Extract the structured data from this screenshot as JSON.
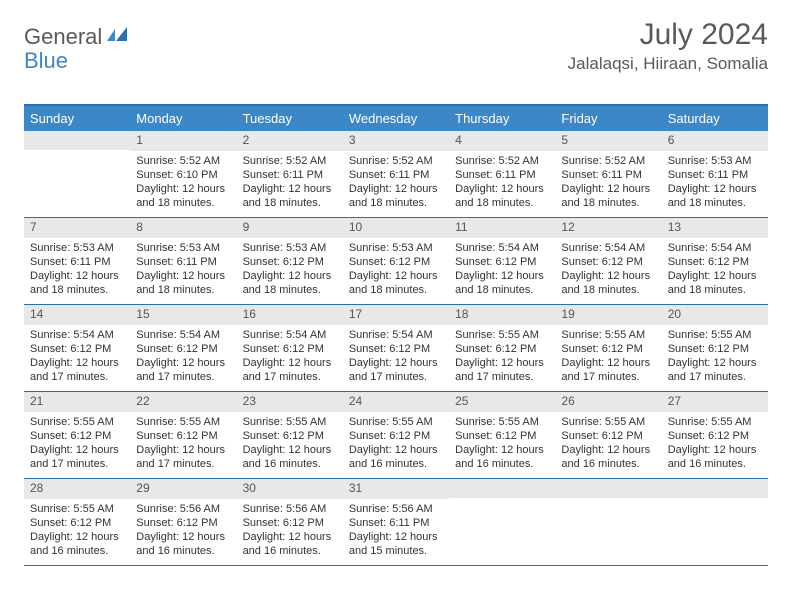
{
  "logo": {
    "part1": "General",
    "part2": "Blue"
  },
  "title": "July 2024",
  "location": "Jalalaqsi, Hiiraan, Somalia",
  "daynames": [
    "Sunday",
    "Monday",
    "Tuesday",
    "Wednesday",
    "Thursday",
    "Friday",
    "Saturday"
  ],
  "colors": {
    "header_bar": "#3b87c8",
    "border": "#2f6fa8",
    "daynum_bg": "#e8e8e8",
    "text": "#333333",
    "muted": "#5a5a5a"
  },
  "weeks": [
    [
      {
        "n": "",
        "sr": "",
        "ss": "",
        "dl": ""
      },
      {
        "n": "1",
        "sr": "Sunrise: 5:52 AM",
        "ss": "Sunset: 6:10 PM",
        "dl": "Daylight: 12 hours and 18 minutes."
      },
      {
        "n": "2",
        "sr": "Sunrise: 5:52 AM",
        "ss": "Sunset: 6:11 PM",
        "dl": "Daylight: 12 hours and 18 minutes."
      },
      {
        "n": "3",
        "sr": "Sunrise: 5:52 AM",
        "ss": "Sunset: 6:11 PM",
        "dl": "Daylight: 12 hours and 18 minutes."
      },
      {
        "n": "4",
        "sr": "Sunrise: 5:52 AM",
        "ss": "Sunset: 6:11 PM",
        "dl": "Daylight: 12 hours and 18 minutes."
      },
      {
        "n": "5",
        "sr": "Sunrise: 5:52 AM",
        "ss": "Sunset: 6:11 PM",
        "dl": "Daylight: 12 hours and 18 minutes."
      },
      {
        "n": "6",
        "sr": "Sunrise: 5:53 AM",
        "ss": "Sunset: 6:11 PM",
        "dl": "Daylight: 12 hours and 18 minutes."
      }
    ],
    [
      {
        "n": "7",
        "sr": "Sunrise: 5:53 AM",
        "ss": "Sunset: 6:11 PM",
        "dl": "Daylight: 12 hours and 18 minutes."
      },
      {
        "n": "8",
        "sr": "Sunrise: 5:53 AM",
        "ss": "Sunset: 6:11 PM",
        "dl": "Daylight: 12 hours and 18 minutes."
      },
      {
        "n": "9",
        "sr": "Sunrise: 5:53 AM",
        "ss": "Sunset: 6:12 PM",
        "dl": "Daylight: 12 hours and 18 minutes."
      },
      {
        "n": "10",
        "sr": "Sunrise: 5:53 AM",
        "ss": "Sunset: 6:12 PM",
        "dl": "Daylight: 12 hours and 18 minutes."
      },
      {
        "n": "11",
        "sr": "Sunrise: 5:54 AM",
        "ss": "Sunset: 6:12 PM",
        "dl": "Daylight: 12 hours and 18 minutes."
      },
      {
        "n": "12",
        "sr": "Sunrise: 5:54 AM",
        "ss": "Sunset: 6:12 PM",
        "dl": "Daylight: 12 hours and 18 minutes."
      },
      {
        "n": "13",
        "sr": "Sunrise: 5:54 AM",
        "ss": "Sunset: 6:12 PM",
        "dl": "Daylight: 12 hours and 18 minutes."
      }
    ],
    [
      {
        "n": "14",
        "sr": "Sunrise: 5:54 AM",
        "ss": "Sunset: 6:12 PM",
        "dl": "Daylight: 12 hours and 17 minutes."
      },
      {
        "n": "15",
        "sr": "Sunrise: 5:54 AM",
        "ss": "Sunset: 6:12 PM",
        "dl": "Daylight: 12 hours and 17 minutes."
      },
      {
        "n": "16",
        "sr": "Sunrise: 5:54 AM",
        "ss": "Sunset: 6:12 PM",
        "dl": "Daylight: 12 hours and 17 minutes."
      },
      {
        "n": "17",
        "sr": "Sunrise: 5:54 AM",
        "ss": "Sunset: 6:12 PM",
        "dl": "Daylight: 12 hours and 17 minutes."
      },
      {
        "n": "18",
        "sr": "Sunrise: 5:55 AM",
        "ss": "Sunset: 6:12 PM",
        "dl": "Daylight: 12 hours and 17 minutes."
      },
      {
        "n": "19",
        "sr": "Sunrise: 5:55 AM",
        "ss": "Sunset: 6:12 PM",
        "dl": "Daylight: 12 hours and 17 minutes."
      },
      {
        "n": "20",
        "sr": "Sunrise: 5:55 AM",
        "ss": "Sunset: 6:12 PM",
        "dl": "Daylight: 12 hours and 17 minutes."
      }
    ],
    [
      {
        "n": "21",
        "sr": "Sunrise: 5:55 AM",
        "ss": "Sunset: 6:12 PM",
        "dl": "Daylight: 12 hours and 17 minutes."
      },
      {
        "n": "22",
        "sr": "Sunrise: 5:55 AM",
        "ss": "Sunset: 6:12 PM",
        "dl": "Daylight: 12 hours and 17 minutes."
      },
      {
        "n": "23",
        "sr": "Sunrise: 5:55 AM",
        "ss": "Sunset: 6:12 PM",
        "dl": "Daylight: 12 hours and 16 minutes."
      },
      {
        "n": "24",
        "sr": "Sunrise: 5:55 AM",
        "ss": "Sunset: 6:12 PM",
        "dl": "Daylight: 12 hours and 16 minutes."
      },
      {
        "n": "25",
        "sr": "Sunrise: 5:55 AM",
        "ss": "Sunset: 6:12 PM",
        "dl": "Daylight: 12 hours and 16 minutes."
      },
      {
        "n": "26",
        "sr": "Sunrise: 5:55 AM",
        "ss": "Sunset: 6:12 PM",
        "dl": "Daylight: 12 hours and 16 minutes."
      },
      {
        "n": "27",
        "sr": "Sunrise: 5:55 AM",
        "ss": "Sunset: 6:12 PM",
        "dl": "Daylight: 12 hours and 16 minutes."
      }
    ],
    [
      {
        "n": "28",
        "sr": "Sunrise: 5:55 AM",
        "ss": "Sunset: 6:12 PM",
        "dl": "Daylight: 12 hours and 16 minutes."
      },
      {
        "n": "29",
        "sr": "Sunrise: 5:56 AM",
        "ss": "Sunset: 6:12 PM",
        "dl": "Daylight: 12 hours and 16 minutes."
      },
      {
        "n": "30",
        "sr": "Sunrise: 5:56 AM",
        "ss": "Sunset: 6:12 PM",
        "dl": "Daylight: 12 hours and 16 minutes."
      },
      {
        "n": "31",
        "sr": "Sunrise: 5:56 AM",
        "ss": "Sunset: 6:11 PM",
        "dl": "Daylight: 12 hours and 15 minutes."
      },
      {
        "n": "",
        "sr": "",
        "ss": "",
        "dl": ""
      },
      {
        "n": "",
        "sr": "",
        "ss": "",
        "dl": ""
      },
      {
        "n": "",
        "sr": "",
        "ss": "",
        "dl": ""
      }
    ]
  ]
}
